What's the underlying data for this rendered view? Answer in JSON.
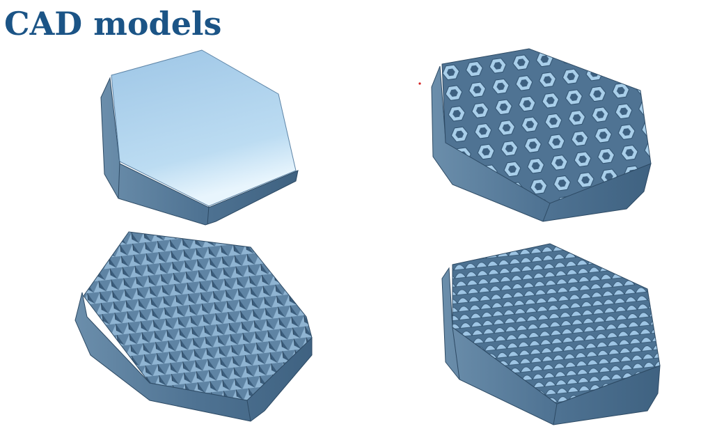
{
  "title": "CAD models"
}
